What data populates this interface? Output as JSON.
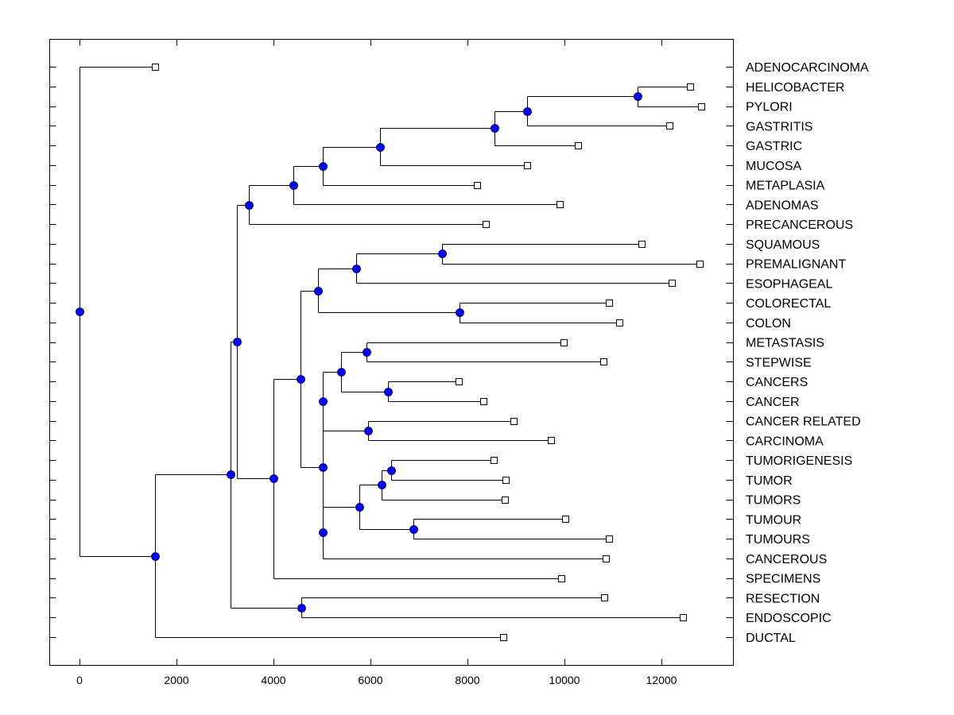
{
  "chart_data": {
    "type": "dendrogram",
    "title": "",
    "xlabel": "",
    "ylabel": "",
    "xlim": [
      -600,
      13400
    ],
    "x_ticks": [
      0,
      2000,
      4000,
      6000,
      8000,
      10000,
      12000
    ],
    "x_tick_labels": [
      "0",
      "2000",
      "4000",
      "6000",
      "8000",
      "10000",
      "12000"
    ],
    "node_color": "#0000ff",
    "leaves": [
      {
        "label": "ADENOCARCINOMA",
        "x": 1557
      },
      {
        "label": "HELICOBACTER",
        "x": 12590
      },
      {
        "label": "PYLORI",
        "x": 12820
      },
      {
        "label": "GASTRITIS",
        "x": 12164
      },
      {
        "label": "GASTRIC",
        "x": 10279
      },
      {
        "label": "MUCOSA",
        "x": 9230
      },
      {
        "label": "METAPLASIA",
        "x": 8197
      },
      {
        "label": "ADENOMAS",
        "x": 9902
      },
      {
        "label": "PRECANCEROUS",
        "x": 8377
      },
      {
        "label": "SQUAMOUS",
        "x": 11590
      },
      {
        "label": "PREMALIGNANT",
        "x": 12787
      },
      {
        "label": "ESOPHAGEAL",
        "x": 12213
      },
      {
        "label": "COLORECTAL",
        "x": 10918
      },
      {
        "label": "COLON",
        "x": 11131
      },
      {
        "label": "METASTASIS",
        "x": 9984
      },
      {
        "label": "STEPWISE",
        "x": 10803
      },
      {
        "label": "CANCERS",
        "x": 7820
      },
      {
        "label": "CANCER",
        "x": 8328
      },
      {
        "label": "CANCER RELATED",
        "x": 8951
      },
      {
        "label": "CARCINOMA",
        "x": 9721
      },
      {
        "label": "TUMORIGENESIS",
        "x": 8541
      },
      {
        "label": "TUMOR",
        "x": 8787
      },
      {
        "label": "TUMORS",
        "x": 8770
      },
      {
        "label": "TUMOUR",
        "x": 10016
      },
      {
        "label": "TUMOURS",
        "x": 10918
      },
      {
        "label": "CANCEROUS",
        "x": 10852
      },
      {
        "label": "SPECIMENS",
        "x": 9934
      },
      {
        "label": "RESECTION",
        "x": 10820
      },
      {
        "label": "ENDOSCOPIC",
        "x": 12443
      },
      {
        "label": "DUCTAL",
        "x": 8738
      }
    ],
    "nodes": [
      {
        "id": "root",
        "x": 0,
        "children": [
          "L0",
          "n1"
        ]
      },
      {
        "id": "n1",
        "x": 1557,
        "children": [
          "n2",
          "L29"
        ]
      },
      {
        "id": "n2",
        "x": 3115,
        "children": [
          "n3",
          "n28"
        ]
      },
      {
        "id": "n3",
        "x": 3246,
        "children": [
          "n4",
          "n10"
        ]
      },
      {
        "id": "n4",
        "x": 3492,
        "children": [
          "n5",
          "L8"
        ]
      },
      {
        "id": "n5",
        "x": 4410,
        "children": [
          "n6",
          "L7"
        ]
      },
      {
        "id": "n6",
        "x": 5016,
        "children": [
          "n7",
          "L6"
        ]
      },
      {
        "id": "n7",
        "x": 6197,
        "children": [
          "n8",
          "L5"
        ]
      },
      {
        "id": "n8",
        "x": 8557,
        "children": [
          "n9",
          "L4"
        ]
      },
      {
        "id": "n9",
        "x": 9230,
        "children": [
          "n9a",
          "L3"
        ]
      },
      {
        "id": "n9a",
        "x": 11508,
        "children": [
          "L1",
          "L2"
        ]
      },
      {
        "id": "n10",
        "x": 4000,
        "children": [
          "n11",
          "L26"
        ]
      },
      {
        "id": "n11",
        "x": 4557,
        "children": [
          "n12",
          "n16"
        ]
      },
      {
        "id": "n12",
        "x": 4918,
        "children": [
          "n13",
          "n15"
        ]
      },
      {
        "id": "n13",
        "x": 5705,
        "children": [
          "n14",
          "L11"
        ]
      },
      {
        "id": "n14",
        "x": 7475,
        "children": [
          "L9",
          "L10"
        ]
      },
      {
        "id": "n15",
        "x": 7836,
        "children": [
          "L12",
          "L13"
        ]
      },
      {
        "id": "n16",
        "x": 5016,
        "children": [
          "n17",
          "n22"
        ]
      },
      {
        "id": "n17",
        "x": 5016,
        "children": [
          "n18",
          "n21"
        ]
      },
      {
        "id": "n18",
        "x": 5393,
        "children": [
          "n19",
          "n20"
        ]
      },
      {
        "id": "n19",
        "x": 5918,
        "children": [
          "L14",
          "L15"
        ]
      },
      {
        "id": "n20",
        "x": 6361,
        "children": [
          "L16",
          "L17"
        ]
      },
      {
        "id": "n21",
        "x": 5951,
        "children": [
          "L18",
          "L19"
        ]
      },
      {
        "id": "n22",
        "x": 5016,
        "children": [
          "n23",
          "L25"
        ]
      },
      {
        "id": "n23",
        "x": 5770,
        "children": [
          "n24",
          "n26"
        ]
      },
      {
        "id": "n24",
        "x": 6230,
        "children": [
          "n25",
          "L22"
        ]
      },
      {
        "id": "n25",
        "x": 6426,
        "children": [
          "L20",
          "L21"
        ]
      },
      {
        "id": "n26",
        "x": 6885,
        "children": [
          "L23",
          "L24"
        ]
      },
      {
        "id": "n28",
        "x": 4574,
        "children": [
          "L27",
          "L28"
        ]
      }
    ]
  }
}
